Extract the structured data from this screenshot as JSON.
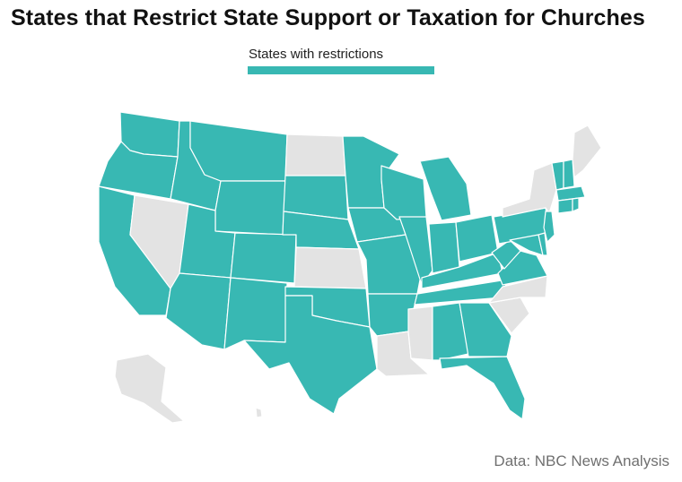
{
  "title": "States that Restrict State Support or Taxation for Churches",
  "legend": {
    "label": "States with restrictions"
  },
  "source": "Data: NBC News Analysis",
  "colors": {
    "restricted": "#38b8b3",
    "unrestricted": "#e3e3e3",
    "border": "#ffffff"
  },
  "map": {
    "restricted_states": [
      "WA",
      "OR",
      "CA",
      "ID",
      "MT",
      "WY",
      "UT",
      "AZ",
      "CO",
      "NM",
      "ND_no",
      "SD",
      "NE",
      "OK",
      "TX",
      "MN",
      "IA",
      "MO",
      "AR",
      "WI",
      "IL",
      "MI",
      "IN",
      "OH",
      "KY",
      "TN",
      "AL",
      "GA",
      "FL",
      "WV",
      "VA",
      "MD",
      "DE",
      "NJ",
      "PA",
      "NH",
      "VT",
      "MA",
      "CT",
      "RI"
    ],
    "unrestricted_states": [
      "NV",
      "ND",
      "KS",
      "LA",
      "MS",
      "NC",
      "SC",
      "NY",
      "ME",
      "AK",
      "HI"
    ]
  }
}
